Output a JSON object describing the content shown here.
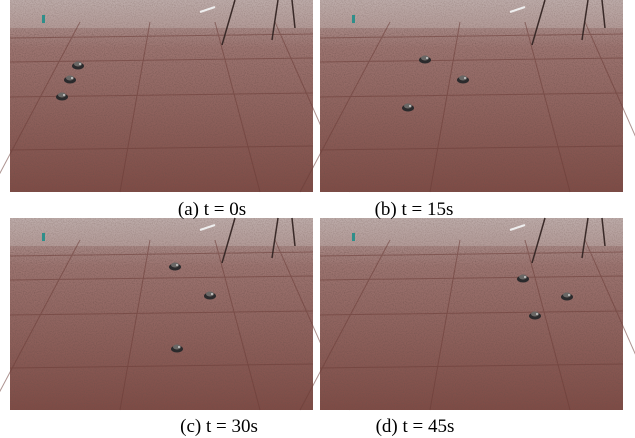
{
  "panels": [
    {
      "caption": "(a) t = 0s"
    },
    {
      "caption": "(b) t = 15s"
    },
    {
      "caption": "(c) t = 30s"
    },
    {
      "caption": "(d) t = 45s"
    }
  ]
}
